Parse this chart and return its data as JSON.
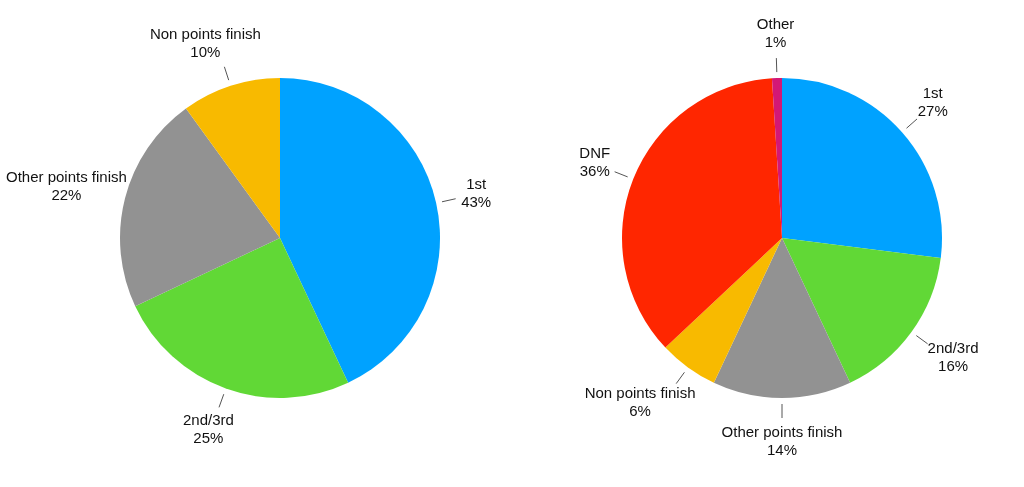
{
  "chart_data": [
    {
      "type": "pie",
      "categories": [
        "1st",
        "2nd/3rd",
        "Other points finish",
        "Non points finish"
      ],
      "values": [
        43,
        25,
        22,
        10
      ],
      "value_labels": [
        "43%",
        "25%",
        "22%",
        "10%"
      ],
      "colors": [
        "#00a2ff",
        "#61d836",
        "#929292",
        "#f8ba00"
      ]
    },
    {
      "type": "pie",
      "categories": [
        "1st",
        "2nd/3rd",
        "Other points finish",
        "Non points finish",
        "DNF",
        "Other"
      ],
      "values": [
        27,
        16,
        14,
        6,
        36,
        1
      ],
      "value_labels": [
        "27%",
        "16%",
        "14%",
        "6%",
        "36%",
        "1%"
      ],
      "colors": [
        "#00a2ff",
        "#61d836",
        "#929292",
        "#f8ba00",
        "#ff2600",
        "#d31876"
      ]
    }
  ]
}
